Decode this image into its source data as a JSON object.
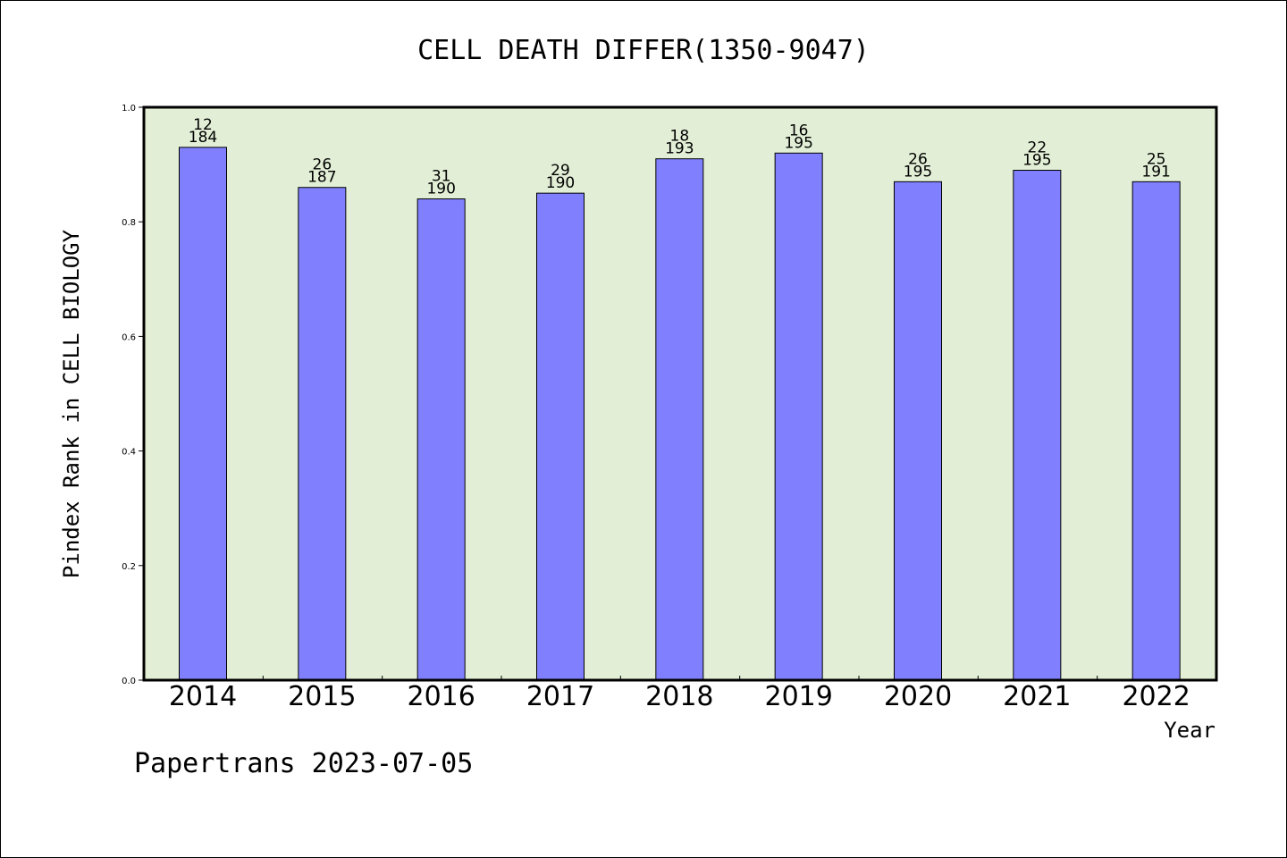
{
  "chart_data": {
    "type": "bar",
    "title": "CELL DEATH DIFFER(1350-9047)",
    "xlabel": "Year",
    "ylabel": "Pindex Rank in CELL BIOLOGY",
    "categories": [
      "2014",
      "2015",
      "2016",
      "2017",
      "2018",
      "2019",
      "2020",
      "2021",
      "2022"
    ],
    "values": [
      0.93,
      0.86,
      0.84,
      0.85,
      0.91,
      0.92,
      0.87,
      0.89,
      0.87
    ],
    "rank_labels": [
      "12",
      "26",
      "31",
      "29",
      "18",
      "16",
      "26",
      "22",
      "25"
    ],
    "total_labels": [
      "184",
      "187",
      "190",
      "190",
      "193",
      "195",
      "195",
      "195",
      "191"
    ],
    "ylim": [
      0,
      1.0
    ],
    "yticks": [
      "0.0",
      "0.2",
      "0.4",
      "0.6",
      "0.8",
      "1.0"
    ],
    "grid": false,
    "colors": {
      "bar": "#8080ff",
      "plot_background": "#e2efd6",
      "axes": "#000000"
    }
  },
  "footer": {
    "text": "Papertrans 2023-07-05"
  }
}
